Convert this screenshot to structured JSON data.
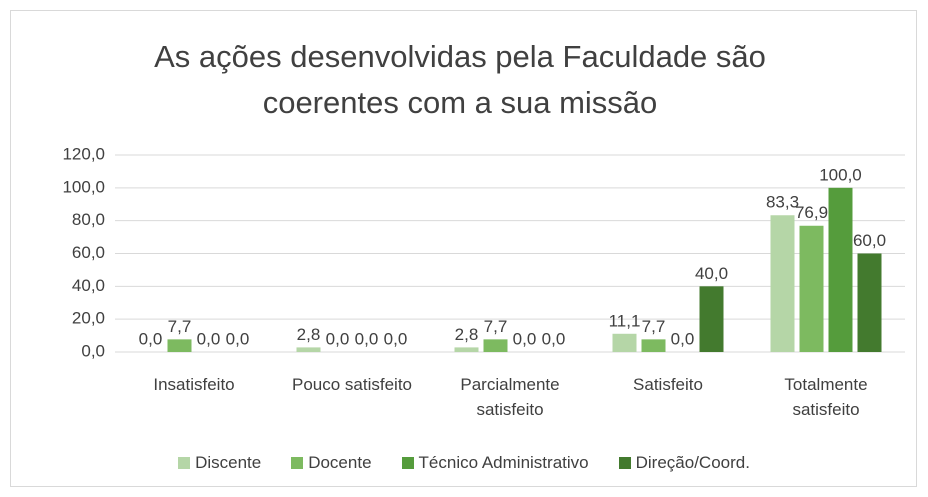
{
  "chart_data": {
    "type": "bar",
    "title": "As ações desenvolvidas pela Faculdade são coerentes com a sua missão",
    "categories": [
      "Insatisfeito",
      "Pouco satisfeito",
      "Parcialmente satisfeito",
      "Satisfeito",
      "Totalmente satisfeito"
    ],
    "series": [
      {
        "name": "Discente",
        "color": "#b5d6a7",
        "values": [
          0.0,
          2.8,
          2.8,
          11.1,
          83.3
        ],
        "value_labels": [
          "0,0",
          "2,8",
          "2,8",
          "11,1",
          "83,3"
        ]
      },
      {
        "name": "Docente",
        "color": "#7dba60",
        "values": [
          7.7,
          0.0,
          7.7,
          7.7,
          76.9
        ],
        "value_labels": [
          "7,7",
          "0,0",
          "7,7",
          "7,7",
          "76,9"
        ]
      },
      {
        "name": "Técnico Administrativo",
        "color": "#559c3c",
        "values": [
          0.0,
          0.0,
          0.0,
          0.0,
          100.0
        ],
        "value_labels": [
          "0,0",
          "0,0",
          "0,0",
          "0,0",
          "100,0"
        ]
      },
      {
        "name": "Direção/Coord.",
        "color": "#437a2e",
        "values": [
          0.0,
          0.0,
          0.0,
          40.0,
          60.0
        ],
        "value_labels": [
          "0,0",
          "0,0",
          "0,0",
          "40,0",
          "60,0"
        ]
      }
    ],
    "ylim": [
      0,
      120
    ],
    "yticks": [
      {
        "value": 0,
        "label": "0,0"
      },
      {
        "value": 20,
        "label": "20,0"
      },
      {
        "value": 40,
        "label": "40,0"
      },
      {
        "value": 60,
        "label": "60,0"
      },
      {
        "value": 80,
        "label": "80,0"
      },
      {
        "value": 100,
        "label": "100,0"
      },
      {
        "value": 120,
        "label": "120,0"
      }
    ],
    "grid": true,
    "legend": "bottom"
  }
}
